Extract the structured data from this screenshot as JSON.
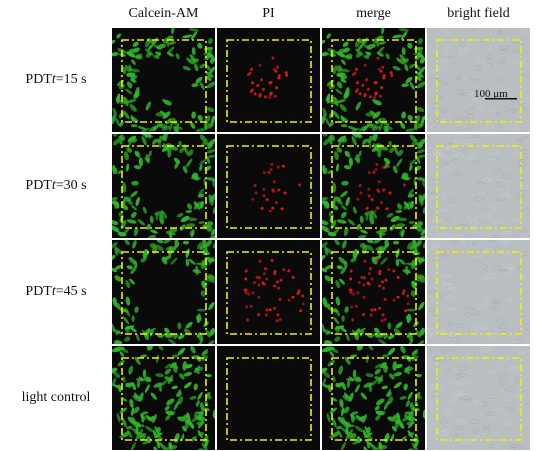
{
  "columns": [
    {
      "key": "calcein",
      "label": "Calcein-AM"
    },
    {
      "key": "pi",
      "label": "PI"
    },
    {
      "key": "merge",
      "label": "merge"
    },
    {
      "key": "bright",
      "label": "bright field"
    }
  ],
  "rows": [
    {
      "key": "t15",
      "label_prefix": "PDT ",
      "label_var": "t",
      "label_suffix": "=15 s",
      "damage_level": 0.45
    },
    {
      "key": "t30",
      "label_prefix": "PDT ",
      "label_var": "t",
      "label_suffix": "=30 s",
      "damage_level": 0.65
    },
    {
      "key": "t45",
      "label_prefix": "PDT ",
      "label_var": "t",
      "label_suffix": "=45 s",
      "damage_level": 0.9
    },
    {
      "key": "control",
      "label_prefix": "light control",
      "label_var": "",
      "label_suffix": "",
      "damage_level": 0
    }
  ],
  "scale_bar": {
    "label": "100 μm"
  },
  "colors": {
    "live_cell": "#2fb52a",
    "dead_cell": "#e21a1a",
    "background": "#0a0a0a",
    "roi_box": "#f2f200",
    "bright_field": "#b9bec2"
  }
}
